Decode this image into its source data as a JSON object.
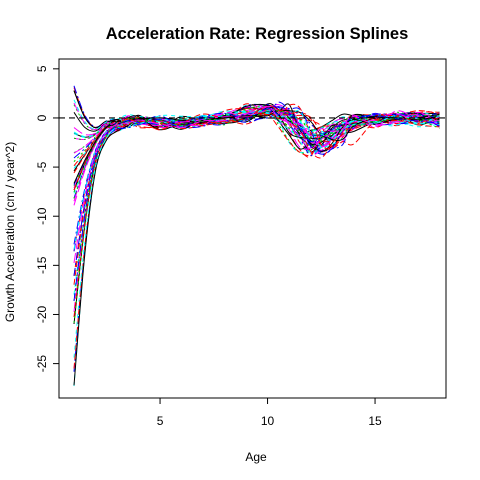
{
  "chart_data": {
    "type": "line",
    "title": "Acceleration Rate: Regression Splines",
    "xlabel": "Age",
    "ylabel": "Growth Acceleration (cm / year^2)",
    "xlim": [
      0.3,
      18.3
    ],
    "ylim": [
      -28.5,
      6
    ],
    "x_ticks": [
      5,
      10,
      15
    ],
    "y_ticks": [
      5,
      0,
      -5,
      -10,
      -15,
      -20,
      -25
    ],
    "grid": false,
    "legend": "none",
    "reference_line": {
      "y": 0,
      "style": "dashed",
      "color": "#000000"
    },
    "curve_count": 54,
    "palette": [
      "#000000",
      "#ff0000",
      "#00cd00",
      "#0000ff",
      "#00ffff",
      "#ff00ff"
    ],
    "x": [
      1,
      1.5,
      2,
      2.5,
      3,
      3.5,
      4,
      5,
      6,
      7,
      8,
      9,
      10,
      10.5,
      11,
      11.5,
      12,
      12.5,
      13,
      13.5,
      14,
      15,
      16,
      17,
      18
    ],
    "series_envelope": {
      "min": [
        -27.5,
        -16,
        -7,
        -3.5,
        -2,
        -1.5,
        -2,
        -2.5,
        -3,
        -2,
        -1.5,
        -1,
        -1,
        -1.5,
        -2.5,
        -3.5,
        -4.5,
        -4.5,
        -4,
        -3.5,
        -3,
        -2,
        -1.5,
        -1.5,
        -2.5
      ],
      "median": [
        -11,
        -6,
        -3,
        -1.5,
        -0.8,
        -0.4,
        -0.3,
        -0.5,
        -0.5,
        -0.2,
        0,
        0.3,
        0.8,
        0.8,
        0.3,
        -0.8,
        -2.5,
        -2.8,
        -2,
        -1,
        -0.5,
        -0.2,
        0,
        0,
        -0.2
      ],
      "max": [
        3.5,
        2,
        0.5,
        1.5,
        2,
        3,
        4.5,
        2.5,
        1.5,
        1.5,
        2,
        2,
        2.5,
        2.5,
        2,
        2,
        1.5,
        2.5,
        2,
        1.5,
        1,
        1,
        1,
        1.5,
        3.5
      ]
    }
  }
}
